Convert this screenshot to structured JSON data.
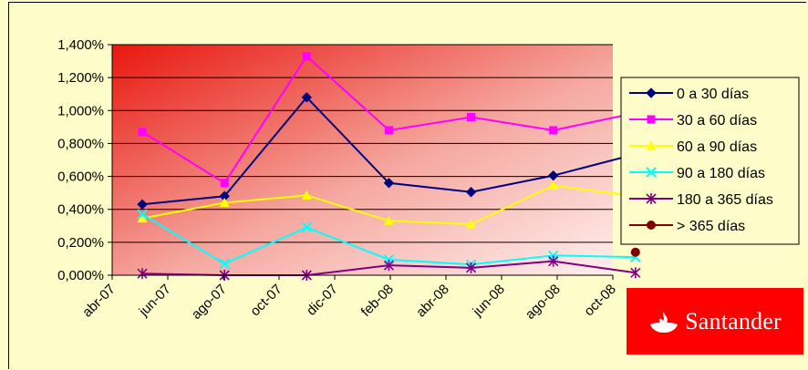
{
  "chart_data": {
    "type": "line",
    "title": "",
    "xlabel": "",
    "ylabel": "",
    "x_tick_labels": [
      "abr-07",
      "jun-07",
      "ago-07",
      "oct-07",
      "dic-07",
      "feb-08",
      "abr-08",
      "jun-08",
      "ago-08",
      "oct-08"
    ],
    "y_tick_labels": [
      "0,000%",
      "0,200%",
      "0,400%",
      "0,600%",
      "0,800%",
      "1,000%",
      "1,200%",
      "1,400%"
    ],
    "ylim": [
      0,
      1.4
    ],
    "grid": "horizontal",
    "legend_position": "right",
    "x_dates": [
      "2007-04",
      "2007-07",
      "2007-10",
      "2008-01",
      "2008-04",
      "2008-07",
      "2008-10"
    ],
    "series": [
      {
        "name": "0 a 30 días",
        "color": "#000080",
        "marker": "diamond",
        "values": [
          0.43,
          0.48,
          1.08,
          0.56,
          0.505,
          0.605,
          0.735
        ]
      },
      {
        "name": "30 a 60 días",
        "color": "#ff00ff",
        "marker": "square",
        "values": [
          0.87,
          0.56,
          1.33,
          0.88,
          0.96,
          0.88,
          0.985
        ]
      },
      {
        "name": "60 a 90 días",
        "color": "#ffff00",
        "marker": "triangle",
        "values": [
          0.345,
          0.44,
          0.485,
          0.33,
          0.31,
          0.545,
          0.48
        ]
      },
      {
        "name": "90 a 180 días",
        "color": "#00ffff",
        "marker": "x",
        "values": [
          0.37,
          0.07,
          0.29,
          0.095,
          0.065,
          0.12,
          0.11
        ]
      },
      {
        "name": "180 a 365 días",
        "color": "#800080",
        "marker": "star",
        "values": [
          0.01,
          0.0,
          0.0,
          0.06,
          0.045,
          0.085,
          0.015
        ]
      },
      {
        "name": "> 365 días",
        "color": "#800000",
        "marker": "circle",
        "values": [
          null,
          null,
          null,
          null,
          null,
          null,
          0.14
        ]
      }
    ]
  },
  "logo": {
    "text": "Santander",
    "background": "#ff0000"
  }
}
